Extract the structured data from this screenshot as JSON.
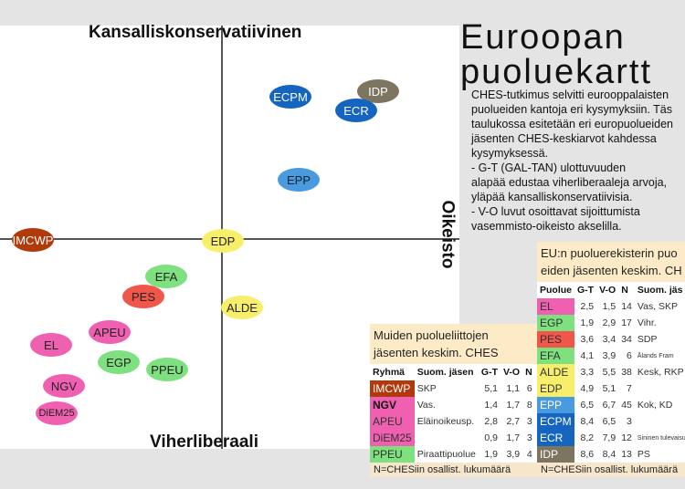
{
  "axes": {
    "top": "Kansalliskonservatiivinen",
    "bottom": "Viherliberaali",
    "right": "Oikeisto"
  },
  "title_line1": "Euroopan",
  "title_line2": "puoluekartt",
  "intro": [
    "CHES-tutkimus selvitti eurooppalaisten",
    "puolueiden kantoja eri kysymyksiin. Täs",
    "taulukossa esitetään eri europuolueiden",
    "jäsenten CHES-keskiarvot kahdessa",
    "kysymyksessä.",
    "- G-T (GAL-TAN) ulottuvuuden",
    "alapää edustaa viherliberaaleja arvoja,",
    "yläpää kansalliskonservatiivisia.",
    "- V-O luvut osoittavat sijoittumista",
    "vasemmisto-oikeisto akselilla."
  ],
  "map": [
    {
      "label": "ECPM",
      "color": "#1565c0",
      "text": "#fff",
      "gt": 8.4,
      "vo": 6.5
    },
    {
      "label": "IDP",
      "color": "#7d7560",
      "text": "#fff",
      "gt": 8.6,
      "vo": 8.4
    },
    {
      "label": "ECR",
      "color": "#1565c0",
      "text": "#fff",
      "gt": 8.2,
      "vo": 7.9
    },
    {
      "label": "EPP",
      "color": "#4a9ae0",
      "text": "#123",
      "gt": 6.5,
      "vo": 6.7
    },
    {
      "label": "EDP",
      "color": "#f7ef6a",
      "text": "#222",
      "gt": 4.9,
      "vo": 5.1
    },
    {
      "label": "IMCWP",
      "color": "#b23a0a",
      "text": "#fff",
      "gt": 5.1,
      "vo": 1.1
    },
    {
      "label": "EFA",
      "color": "#7ee07e",
      "text": "#222",
      "gt": 4.1,
      "vo": 3.9
    },
    {
      "label": "PES",
      "color": "#f0574a",
      "text": "#222",
      "gt": 3.6,
      "vo": 3.4
    },
    {
      "label": "ALDE",
      "color": "#f7ef6a",
      "text": "#222",
      "gt": 3.3,
      "vo": 5.5
    },
    {
      "label": "APEU",
      "color": "#f060b0",
      "text": "#222",
      "gt": 2.8,
      "vo": 2.7
    },
    {
      "label": "EL",
      "color": "#f060b0",
      "text": "#222",
      "gt": 2.5,
      "vo": 1.5
    },
    {
      "label": "EGP",
      "color": "#7ee07e",
      "text": "#222",
      "gt": 1.9,
      "vo": 2.9
    },
    {
      "label": "PPEU",
      "color": "#7ee07e",
      "text": "#222",
      "gt": 1.9,
      "vo": 3.9
    },
    {
      "label": "NGV",
      "color": "#f060b0",
      "text": "#222",
      "gt": 1.4,
      "vo": 1.7
    },
    {
      "label": "DiEM25",
      "color": "#f060b0",
      "text": "#222",
      "gt": 0.9,
      "vo": 1.7
    }
  ],
  "other": {
    "caption1": "Muiden puolueliittojen",
    "caption2": "jäsenten keskim. CHES",
    "headers": [
      "Ryhmä",
      "Suom. jäsen",
      "G-T",
      "V-O",
      "N"
    ],
    "rows": [
      {
        "group": "IMCWP",
        "color": "#b23a0a",
        "tc": "#fff",
        "member": "SKP",
        "gt": "5,1",
        "vo": "1,1",
        "n": "6"
      },
      {
        "group": "NGV",
        "color": "#f060b0",
        "tc": "#111",
        "member": "Vas.",
        "gt": "1,4",
        "vo": "1,7",
        "n": "8"
      },
      {
        "group": "APEU",
        "color": "#f060b0",
        "tc": "#333",
        "member": "Eläinoikeusp.",
        "gt": "2,8",
        "vo": "2,7",
        "n": "3"
      },
      {
        "group": "DiEM25",
        "color": "#f060b0",
        "tc": "#333",
        "member": "",
        "gt": "0,9",
        "vo": "1,7",
        "n": "3"
      },
      {
        "group": "PPEU",
        "color": "#7ee07e",
        "tc": "#333",
        "member": "Piraattipuolue",
        "gt": "1,9",
        "vo": "3,9",
        "n": "4"
      }
    ],
    "footer": "N=CHESiin osallist. lukumäärä"
  },
  "eu": {
    "caption1": "EU:n puoluerekisterin puo",
    "caption2": "eiden jäsenten keskim. CH",
    "headers": [
      "Puolue",
      "G-T",
      "V-O",
      "N",
      "Suom. jäs"
    ],
    "rows": [
      {
        "party": "EL",
        "color": "#f060b0",
        "tc": "#333",
        "gt": "2,5",
        "vo": "1,5",
        "n": "14",
        "member": "Vas, SKP"
      },
      {
        "party": "EGP",
        "color": "#7ee07e",
        "tc": "#333",
        "gt": "1,9",
        "vo": "2,9",
        "n": "17",
        "member": "Vihr."
      },
      {
        "party": "PES",
        "color": "#f0574a",
        "tc": "#333",
        "gt": "3,6",
        "vo": "3,4",
        "n": "34",
        "member": "SDP"
      },
      {
        "party": "EFA",
        "color": "#7ee07e",
        "tc": "#333",
        "gt": "4,1",
        "vo": "3,9",
        "n": "6",
        "member": "Ålands Fram"
      },
      {
        "party": "ALDE",
        "color": "#f7ef6a",
        "tc": "#333",
        "gt": "3,3",
        "vo": "5,5",
        "n": "38",
        "member": "Kesk, RKP"
      },
      {
        "party": "EDP",
        "color": "#f7ef6a",
        "tc": "#333",
        "gt": "4,9",
        "vo": "5,1",
        "n": "7",
        "member": ""
      },
      {
        "party": "EPP",
        "color": "#4a9ae0",
        "tc": "#fff",
        "gt": "6,5",
        "vo": "6,7",
        "n": "45",
        "member": "Kok, KD"
      },
      {
        "party": "ECPM",
        "color": "#1565c0",
        "tc": "#fff",
        "gt": "8,4",
        "vo": "6,5",
        "n": "3",
        "member": ""
      },
      {
        "party": "ECR",
        "color": "#1565c0",
        "tc": "#fff",
        "gt": "8,2",
        "vo": "7,9",
        "n": "12",
        "member": "Sininen tulevaisuus"
      },
      {
        "party": "IDP",
        "color": "#7d7560",
        "tc": "#fff",
        "gt": "8,6",
        "vo": "8,4",
        "n": "13",
        "member": "PS"
      }
    ],
    "footer": "N=CHESiin osallist. lukumäärä"
  }
}
